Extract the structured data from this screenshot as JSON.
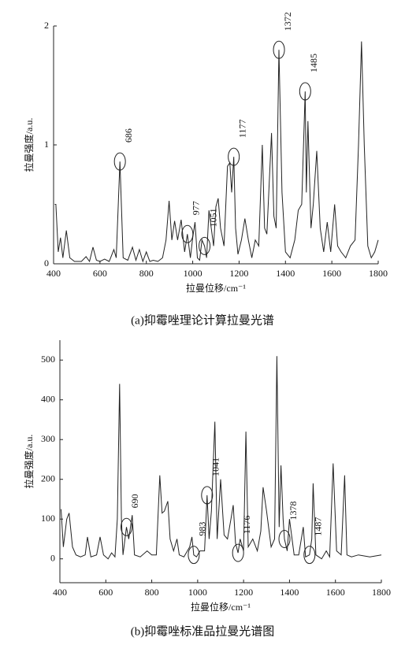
{
  "chart_data": [
    {
      "type": "line",
      "ylabel": "拉曼强度/a.u.",
      "xlabel": "拉曼位移/cm⁻¹",
      "caption": "(a)抑霉唑理论计算拉曼光谱",
      "color": "#222",
      "xlim": [
        400,
        1800
      ],
      "xticks": [
        400,
        600,
        800,
        1000,
        1200,
        1400,
        1600,
        1800
      ],
      "ylim": [
        0,
        2
      ],
      "yticks": [
        0,
        1,
        2
      ],
      "x": [
        405,
        410,
        420,
        430,
        440,
        455,
        470,
        490,
        520,
        540,
        555,
        570,
        585,
        600,
        620,
        640,
        660,
        670,
        686,
        700,
        720,
        740,
        755,
        770,
        785,
        800,
        815,
        830,
        850,
        870,
        885,
        898,
        910,
        922,
        935,
        950,
        965,
        977,
        990,
        1000,
        1010,
        1020,
        1030,
        1040,
        1051,
        1060,
        1070,
        1080,
        1090,
        1100,
        1110,
        1120,
        1135,
        1150,
        1160,
        1168,
        1177,
        1185,
        1195,
        1210,
        1225,
        1240,
        1255,
        1270,
        1285,
        1300,
        1310,
        1320,
        1340,
        1350,
        1360,
        1372,
        1385,
        1400,
        1420,
        1440,
        1455,
        1470,
        1485,
        1490,
        1497,
        1510,
        1520,
        1535,
        1550,
        1565,
        1580,
        1595,
        1612,
        1625,
        1640,
        1660,
        1680,
        1700,
        1715,
        1728,
        1740,
        1755,
        1770,
        1785,
        1800
      ],
      "values": [
        0.5,
        0.5,
        0.1,
        0.22,
        0.05,
        0.28,
        0.05,
        0.02,
        0.02,
        0.06,
        0.02,
        0.14,
        0.03,
        0.02,
        0.04,
        0.02,
        0.12,
        0.05,
        0.86,
        0.05,
        0.03,
        0.14,
        0.03,
        0.12,
        0.02,
        0.1,
        0.02,
        0.03,
        0.02,
        0.05,
        0.2,
        0.53,
        0.2,
        0.36,
        0.2,
        0.37,
        0.1,
        0.25,
        0.05,
        0.22,
        0.35,
        0.05,
        0.03,
        0.2,
        0.15,
        0.05,
        0.45,
        0.3,
        0.15,
        0.48,
        0.55,
        0.3,
        0.15,
        0.82,
        0.85,
        0.6,
        0.9,
        0.3,
        0.08,
        0.2,
        0.38,
        0.2,
        0.05,
        0.2,
        0.15,
        1.0,
        0.3,
        0.25,
        1.1,
        0.4,
        0.3,
        1.8,
        0.6,
        0.1,
        0.05,
        0.2,
        0.45,
        0.5,
        1.45,
        0.6,
        1.2,
        0.3,
        0.5,
        0.95,
        0.3,
        0.1,
        0.35,
        0.1,
        0.5,
        0.15,
        0.1,
        0.05,
        0.15,
        0.2,
        1.0,
        1.87,
        1.0,
        0.15,
        0.05,
        0.1,
        0.2
      ],
      "annotations": [
        686,
        977,
        1051,
        1177,
        1372,
        1485
      ]
    },
    {
      "type": "line",
      "ylabel": "拉曼强度/a.u.",
      "xlabel": "拉曼位移/cm⁻¹",
      "caption": "(b)抑霉唑标准品拉曼光谱图",
      "color": "#222",
      "xlim": [
        400,
        1800
      ],
      "xticks": [
        400,
        600,
        800,
        1000,
        1200,
        1400,
        1600,
        1800
      ],
      "ylim": [
        -60,
        550
      ],
      "yticks": [
        0,
        100,
        200,
        300,
        400,
        500
      ],
      "x": [
        405,
        415,
        430,
        440,
        455,
        470,
        490,
        510,
        520,
        535,
        560,
        575,
        590,
        610,
        625,
        640,
        650,
        660,
        668,
        675,
        690,
        700,
        715,
        725,
        750,
        780,
        800,
        820,
        835,
        845,
        855,
        870,
        880,
        895,
        910,
        920,
        940,
        965,
        975,
        983,
        995,
        1010,
        1030,
        1041,
        1050,
        1060,
        1075,
        1085,
        1100,
        1115,
        1130,
        1145,
        1155,
        1165,
        1176,
        1185,
        1200,
        1210,
        1220,
        1240,
        1260,
        1275,
        1285,
        1300,
        1320,
        1335,
        1345,
        1355,
        1363,
        1372,
        1378,
        1390,
        1400,
        1420,
        1440,
        1460,
        1470,
        1487,
        1497,
        1503,
        1515,
        1540,
        1560,
        1575,
        1590,
        1605,
        1625,
        1640,
        1650,
        1670,
        1700,
        1750,
        1800
      ],
      "values": [
        125,
        30,
        100,
        115,
        30,
        10,
        5,
        10,
        55,
        5,
        10,
        55,
        10,
        0,
        15,
        5,
        100,
        440,
        100,
        10,
        80,
        50,
        110,
        10,
        5,
        20,
        10,
        10,
        210,
        115,
        120,
        145,
        50,
        20,
        50,
        10,
        5,
        30,
        55,
        10,
        5,
        20,
        20,
        160,
        50,
        120,
        345,
        50,
        200,
        60,
        50,
        100,
        135,
        40,
        15,
        50,
        20,
        320,
        30,
        50,
        20,
        70,
        180,
        120,
        30,
        50,
        510,
        80,
        235,
        100,
        50,
        20,
        100,
        10,
        10,
        80,
        5,
        10,
        50,
        190,
        10,
        0,
        20,
        5,
        240,
        20,
        10,
        210,
        10,
        5,
        10,
        5,
        10
      ],
      "annotations": [
        690,
        983,
        1041,
        1176,
        1378,
        1487
      ]
    }
  ]
}
